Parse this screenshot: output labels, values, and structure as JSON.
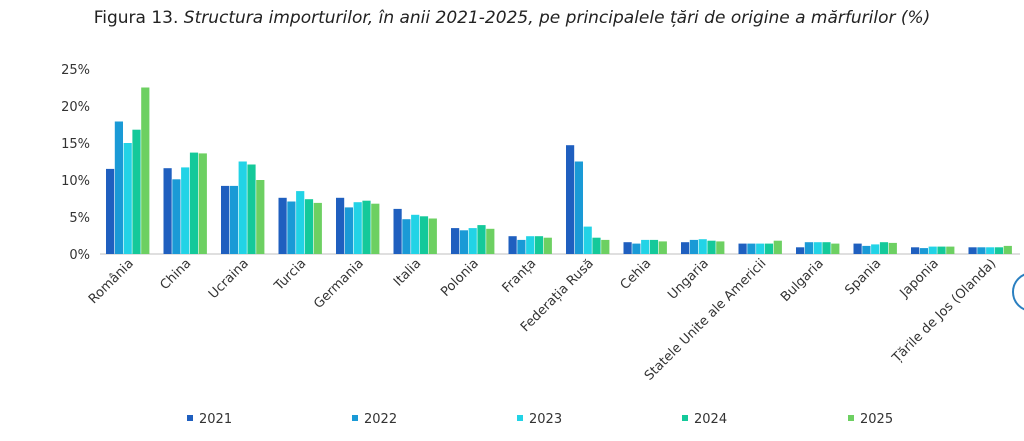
{
  "title_prefix": "Figura 13.",
  "title_main": "Structura importurilor, în anii 2021-2025, pe principalele țări de origine a mărfurilor (%)",
  "chart_data": {
    "type": "bar",
    "title": "Figura 13. Structura importurilor, în anii 2021-2025, pe principalele țări de origine a mărfurilor (%)",
    "xlabel": "",
    "ylabel": "",
    "ylim": [
      0,
      25
    ],
    "yticks": [
      "0%",
      "5%",
      "10%",
      "15%",
      "20%",
      "25%"
    ],
    "grid": false,
    "legend_position": "bottom",
    "categories": [
      "România",
      "China",
      "Ucraina",
      "Turcia",
      "Germania",
      "Italia",
      "Polonia",
      "Franța",
      "Federația Rusă",
      "Cehia",
      "Ungaria",
      "Statele Unite ale Americii",
      "Bulgaria",
      "Spania",
      "Japonia",
      "Țările de Jos (Olanda)"
    ],
    "series": [
      {
        "name": "2021",
        "color": "#1f5fbf",
        "values": [
          11.5,
          11.6,
          9.2,
          7.6,
          7.6,
          6.1,
          3.5,
          2.4,
          14.7,
          1.6,
          1.6,
          1.4,
          0.9,
          1.4,
          0.9,
          0.9
        ]
      },
      {
        "name": "2022",
        "color": "#1a9ad6",
        "values": [
          17.9,
          10.1,
          9.2,
          7.1,
          6.3,
          4.7,
          3.2,
          1.9,
          12.5,
          1.4,
          1.9,
          1.4,
          1.6,
          1.1,
          0.8,
          0.9
        ]
      },
      {
        "name": "2023",
        "color": "#22d3e6",
        "values": [
          15.0,
          11.7,
          12.5,
          8.5,
          7.0,
          5.3,
          3.5,
          2.4,
          3.7,
          1.9,
          2.0,
          1.4,
          1.6,
          1.3,
          1.0,
          0.9
        ]
      },
      {
        "name": "2024",
        "color": "#14c99a",
        "values": [
          16.8,
          13.7,
          12.1,
          7.4,
          7.2,
          5.1,
          3.9,
          2.4,
          2.2,
          1.9,
          1.8,
          1.4,
          1.6,
          1.6,
          1.0,
          0.9
        ]
      },
      {
        "name": "2025",
        "color": "#6dd062",
        "values": [
          22.5,
          13.6,
          10.0,
          6.9,
          6.8,
          4.8,
          3.4,
          2.2,
          1.9,
          1.7,
          1.7,
          1.8,
          1.4,
          1.5,
          1.0,
          1.1
        ]
      }
    ]
  }
}
